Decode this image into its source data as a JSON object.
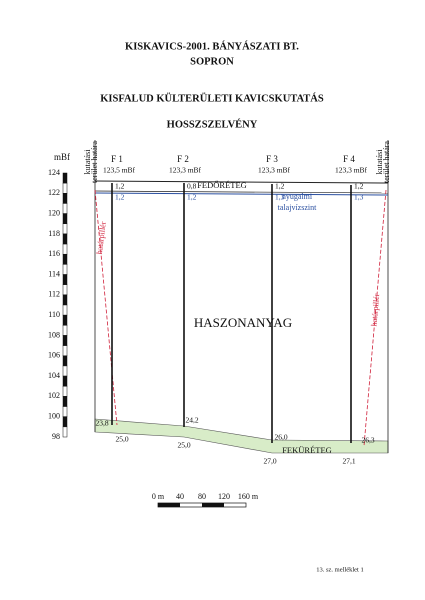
{
  "header": {
    "company": "KISKAVICS-2001. BÁNYÁSZATI BT.",
    "city": "SOPRON",
    "project": "KISFALUD KÜLTERÜLETI KAVICSKUTATÁS",
    "section": "HOSSZSZELVÉNY"
  },
  "axis": {
    "unit": "mBf",
    "ticks": [
      "124",
      "122",
      "120",
      "118",
      "116",
      "114",
      "112",
      "110",
      "108",
      "106",
      "104",
      "102",
      "100",
      "98"
    ]
  },
  "boundary_labels": [
    [
      "kutatási",
      "terület határa"
    ],
    [
      "kutatási",
      "terület határa"
    ]
  ],
  "pillar_labels": [
    "határpillér",
    "határpillér"
  ],
  "wells": [
    {
      "name": "F 1",
      "elevation": "123,5 mBf",
      "cover": "1,2",
      "water": "1,2",
      "base_top": "23,8",
      "bottom": "25,0"
    },
    {
      "name": "F 2",
      "elevation": "123,3 mBf",
      "cover": "0,8",
      "water": "1,2",
      "base_top": "24,2",
      "bottom": "25,0"
    },
    {
      "name": "F 3",
      "elevation": "123,3 mBf",
      "cover": "1,2",
      "water": "1,3",
      "base_top": "26,0",
      "bottom": "27,0"
    },
    {
      "name": "F 4",
      "elevation": "123,3 mBf",
      "cover": "1,2",
      "water": "1,3",
      "base_top": "26,3",
      "bottom": "27,1"
    }
  ],
  "layers": {
    "cover": "FEDŐRÉTEG",
    "useful": "HASZONANYAG",
    "base": "FEKÜRÉTEG"
  },
  "water_table": [
    "nyugalmi",
    "talajvízszint"
  ],
  "scale_bar": [
    "0 m",
    "40",
    "80",
    "120",
    "160 m"
  ],
  "footer": "13. sz. melléklet 1"
}
